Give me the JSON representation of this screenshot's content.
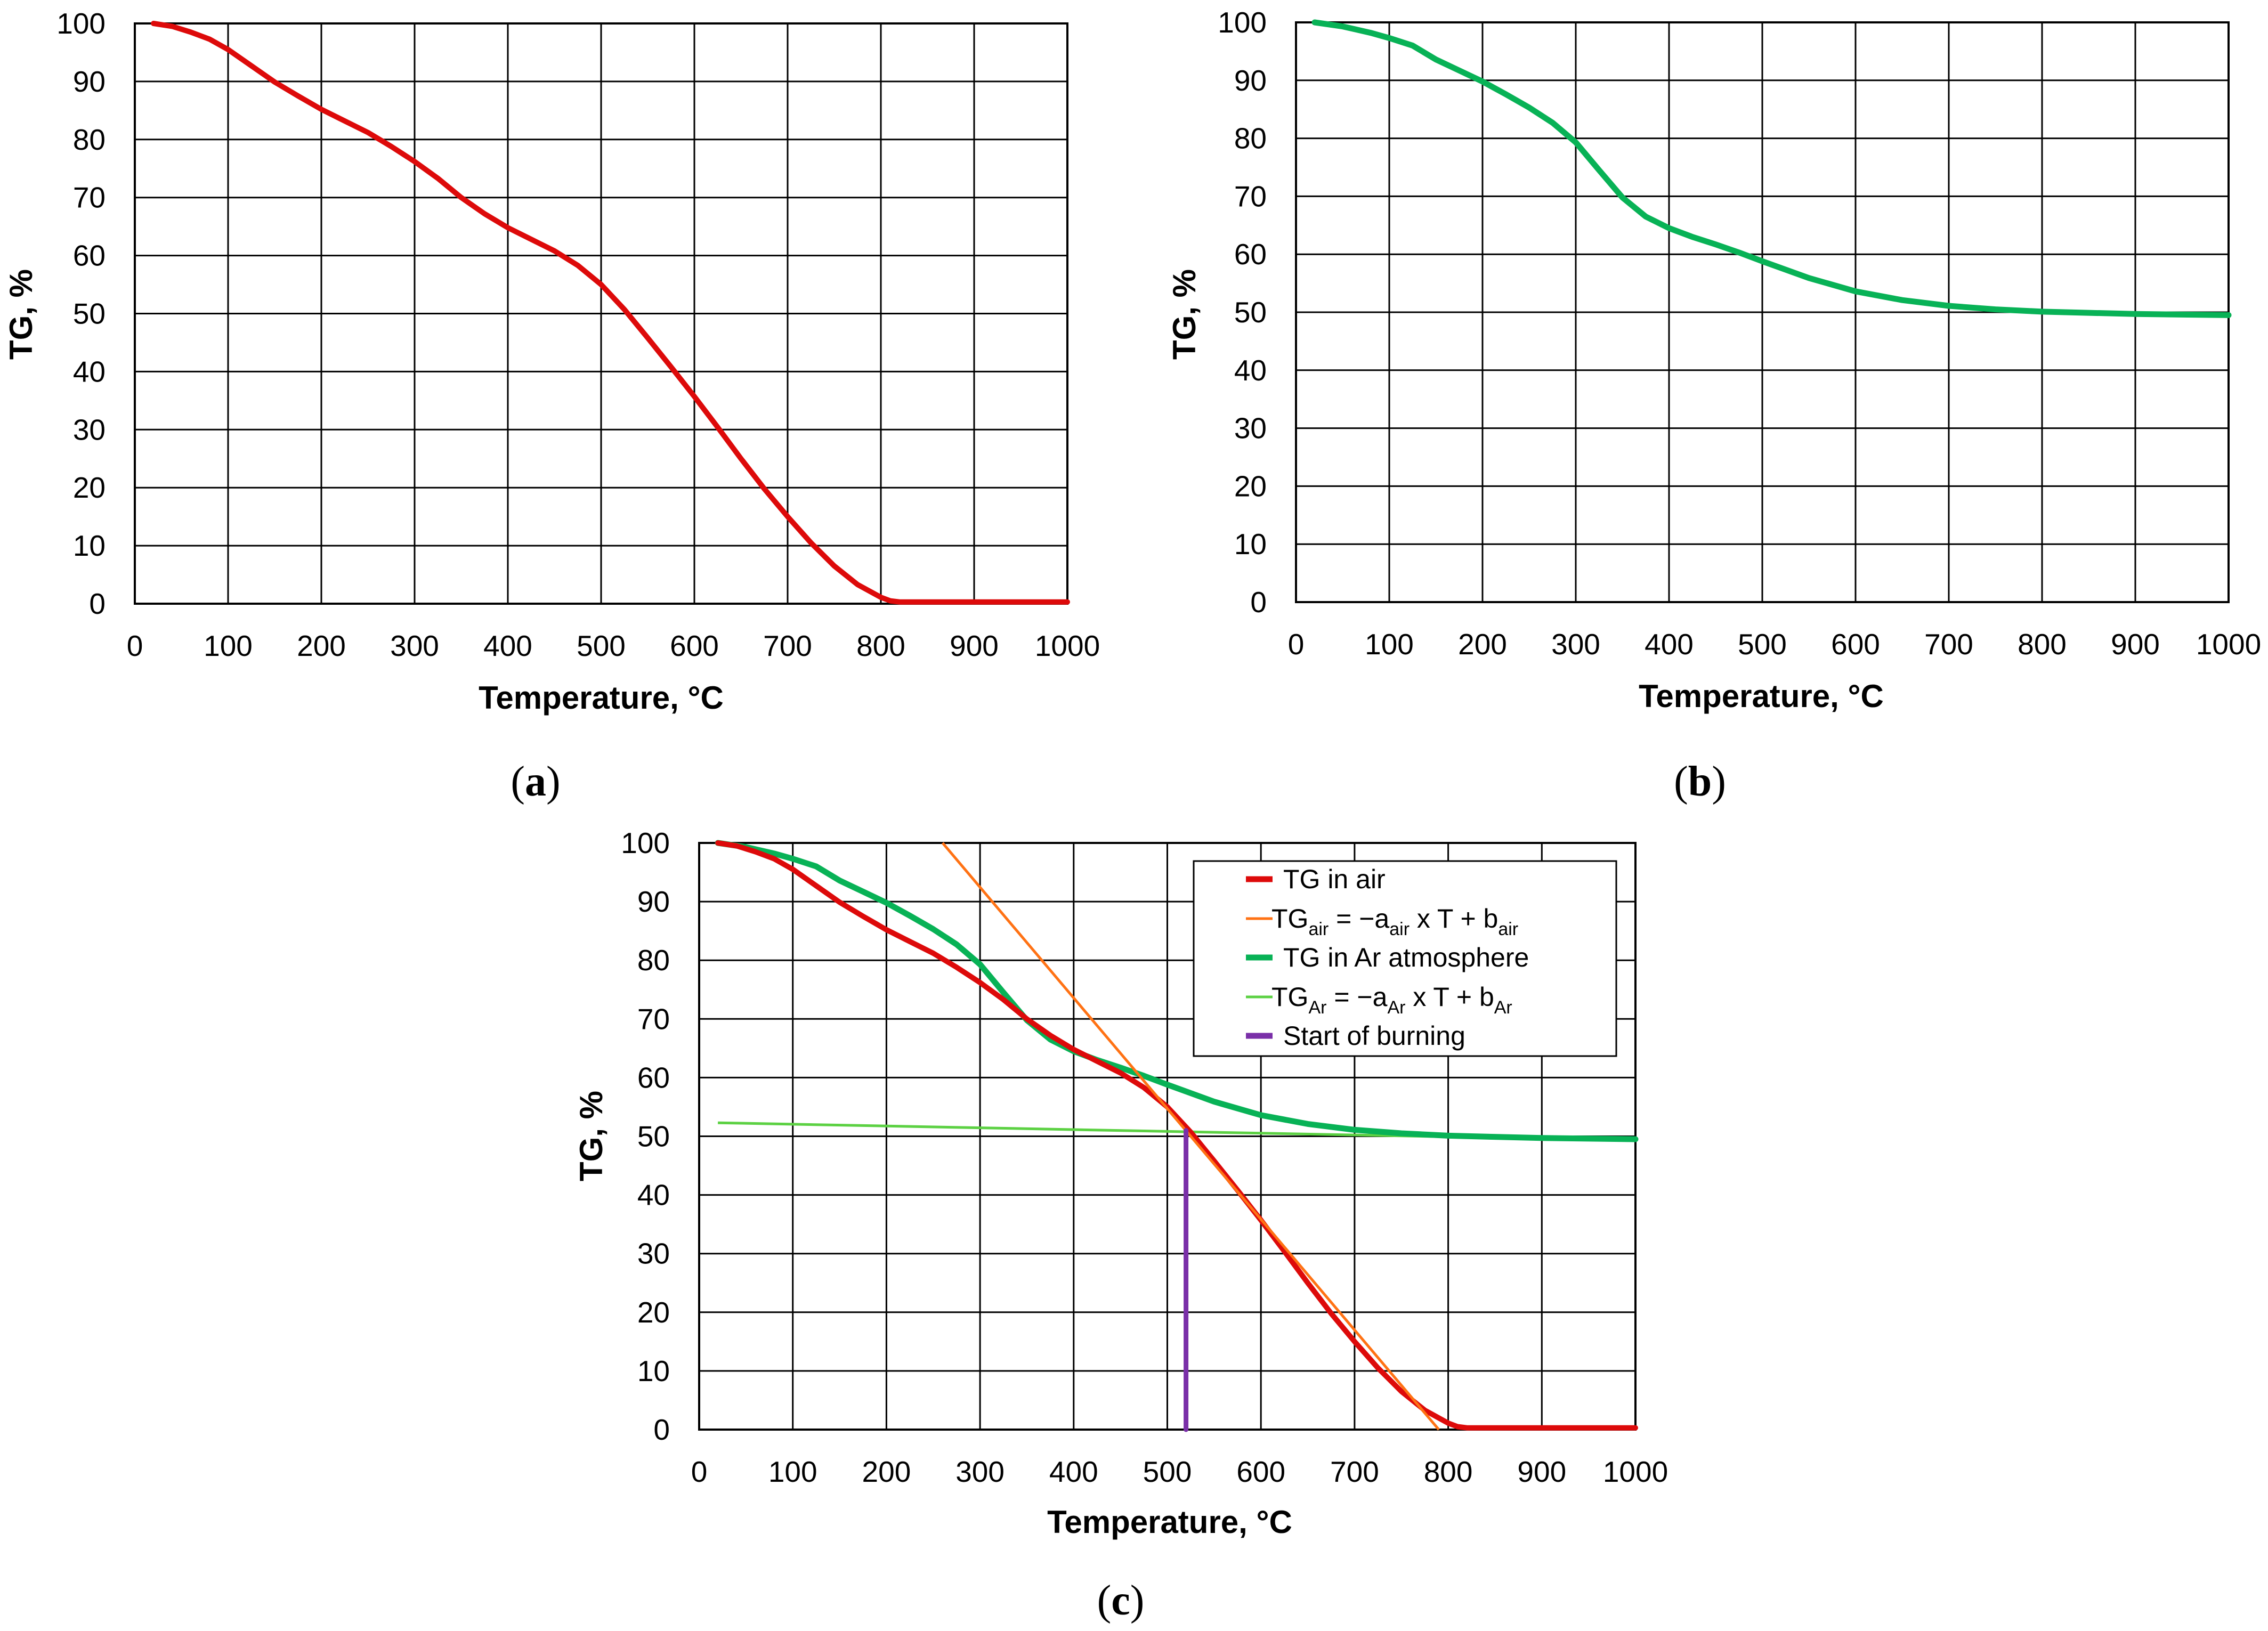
{
  "colors": {
    "tg_air": "#dd0a0a",
    "tg_air_fit": "#ff7214",
    "tg_ar": "#08b256",
    "tg_ar_fit": "#5cd143",
    "start_of_burning": "#7a2fa8",
    "grid": "#000000"
  },
  "chart_data": [
    {
      "id": "a",
      "type": "line",
      "caption_letter": "a",
      "xlabel": "Temperature, °C",
      "ylabel": "TG, %",
      "xlim": [
        0,
        1000
      ],
      "ylim": [
        0,
        100
      ],
      "xticks": [
        "0",
        "100",
        "200",
        "300",
        "400",
        "500",
        "600",
        "700",
        "800",
        "900",
        "1000"
      ],
      "yticks": [
        "0",
        "10",
        "20",
        "30",
        "40",
        "50",
        "60",
        "70",
        "80",
        "90",
        "100"
      ],
      "grid": true,
      "legend": null,
      "series": [
        {
          "key": "tg_air",
          "name": "TG in air",
          "x": [
            20,
            40,
            60,
            80,
            100,
            125,
            150,
            175,
            200,
            225,
            250,
            275,
            300,
            325,
            350,
            375,
            400,
            425,
            450,
            475,
            500,
            525,
            550,
            575,
            600,
            625,
            650,
            675,
            700,
            725,
            750,
            775,
            800,
            810,
            820,
            850,
            900,
            950,
            1000
          ],
          "y": [
            100,
            99.5,
            98.5,
            97.3,
            95.5,
            92.7,
            89.9,
            87.5,
            85.2,
            83.2,
            81.2,
            78.8,
            76.2,
            73.3,
            70.0,
            67.2,
            64.8,
            62.8,
            60.8,
            58.3,
            55.0,
            50.7,
            45.8,
            40.8,
            35.7,
            30.4,
            25.0,
            19.8,
            15.0,
            10.5,
            6.5,
            3.3,
            1.1,
            0.5,
            0.3,
            0.3,
            0.3,
            0.3,
            0.3
          ]
        }
      ]
    },
    {
      "id": "b",
      "type": "line",
      "caption_letter": "b",
      "xlabel": "Temperature, °C",
      "ylabel": "TG, %",
      "xlim": [
        0,
        1000
      ],
      "ylim": [
        0,
        100
      ],
      "xticks": [
        "0",
        "100",
        "200",
        "300",
        "400",
        "500",
        "600",
        "700",
        "800",
        "900",
        "1000"
      ],
      "yticks": [
        "0",
        "10",
        "20",
        "30",
        "40",
        "50",
        "60",
        "70",
        "80",
        "90",
        "100"
      ],
      "grid": true,
      "legend": null,
      "series": [
        {
          "key": "tg_ar",
          "name": "TG in Ar atmosphere",
          "x": [
            20,
            50,
            80,
            100,
            125,
            150,
            175,
            200,
            225,
            250,
            275,
            300,
            325,
            350,
            375,
            400,
            425,
            450,
            475,
            500,
            550,
            600,
            650,
            700,
            750,
            800,
            850,
            900,
            950,
            1000
          ],
          "y": [
            100,
            99.3,
            98.2,
            97.3,
            96.0,
            93.6,
            91.7,
            89.8,
            87.6,
            85.3,
            82.7,
            79.3,
            74.5,
            69.8,
            66.5,
            64.5,
            63.0,
            61.7,
            60.3,
            58.8,
            55.9,
            53.6,
            52.1,
            51.1,
            50.5,
            50.1,
            49.9,
            49.7,
            49.6,
            49.5
          ]
        }
      ]
    },
    {
      "id": "c",
      "type": "line",
      "caption_letter": "c",
      "xlabel": "Temperature, °C",
      "ylabel": "TG, %",
      "xlim": [
        0,
        1000
      ],
      "ylim": [
        0,
        100
      ],
      "xticks": [
        "0",
        "100",
        "200",
        "300",
        "400",
        "500",
        "600",
        "700",
        "800",
        "900",
        "1000"
      ],
      "yticks": [
        "0",
        "10",
        "20",
        "30",
        "40",
        "50",
        "60",
        "70",
        "80",
        "90",
        "100"
      ],
      "grid": true,
      "legend": "top-right",
      "legend_entries": [
        {
          "key": "tg_air",
          "text": "TG in air"
        },
        {
          "key": "tg_air_fit",
          "base": "TG",
          "sub1": "air",
          "mid": " = −a",
          "sub2": "air",
          "mid2": " x T + b",
          "sub3": "air"
        },
        {
          "key": "tg_ar",
          "text": "TG in Ar atmosphere"
        },
        {
          "key": "tg_ar_fit",
          "base": "TG",
          "sub1": "Ar",
          "mid": " = −a",
          "sub2": "Ar",
          "mid2": " x T + b",
          "sub3": "Ar"
        },
        {
          "key": "start_of_burning",
          "text": "Start of burning"
        }
      ],
      "series": [
        {
          "key": "tg_ar_fit",
          "name": "TGAr = −aAr x T + bAr",
          "x": [
            20,
            1000
          ],
          "y": [
            52.3,
            49.3
          ]
        },
        {
          "key": "tg_ar",
          "name": "TG in Ar atmosphere",
          "x": [
            20,
            50,
            80,
            100,
            125,
            150,
            175,
            200,
            225,
            250,
            275,
            300,
            325,
            350,
            375,
            400,
            425,
            450,
            475,
            500,
            550,
            600,
            650,
            700,
            750,
            800,
            850,
            900,
            950,
            1000
          ],
          "y": [
            100,
            99.3,
            98.2,
            97.3,
            96.0,
            93.6,
            91.7,
            89.8,
            87.6,
            85.3,
            82.7,
            79.3,
            74.5,
            69.8,
            66.5,
            64.5,
            63.0,
            61.7,
            60.3,
            58.8,
            55.9,
            53.6,
            52.1,
            51.1,
            50.5,
            50.1,
            49.9,
            49.7,
            49.6,
            49.5
          ]
        },
        {
          "key": "tg_air",
          "name": "TG in air",
          "x": [
            20,
            40,
            60,
            80,
            100,
            125,
            150,
            175,
            200,
            225,
            250,
            275,
            300,
            325,
            350,
            375,
            400,
            425,
            450,
            475,
            500,
            525,
            550,
            575,
            600,
            625,
            650,
            675,
            700,
            725,
            750,
            775,
            800,
            810,
            820,
            850,
            900,
            950,
            1000
          ],
          "y": [
            100,
            99.5,
            98.5,
            97.3,
            95.5,
            92.7,
            89.9,
            87.5,
            85.2,
            83.2,
            81.2,
            78.8,
            76.2,
            73.3,
            70.0,
            67.2,
            64.8,
            62.8,
            60.8,
            58.3,
            55.0,
            50.7,
            45.8,
            40.8,
            35.7,
            30.4,
            25.0,
            19.8,
            15.0,
            10.5,
            6.5,
            3.3,
            1.1,
            0.5,
            0.3,
            0.3,
            0.3,
            0.3,
            0.3
          ]
        },
        {
          "key": "tg_air_fit",
          "name": "TGair = −aair x T + bair",
          "x": [
            260,
            790
          ],
          "y": [
            100,
            0
          ]
        },
        {
          "key": "start_of_burning",
          "name": "Start of burning",
          "x": [
            520,
            520
          ],
          "y": [
            0,
            51
          ]
        }
      ]
    }
  ]
}
